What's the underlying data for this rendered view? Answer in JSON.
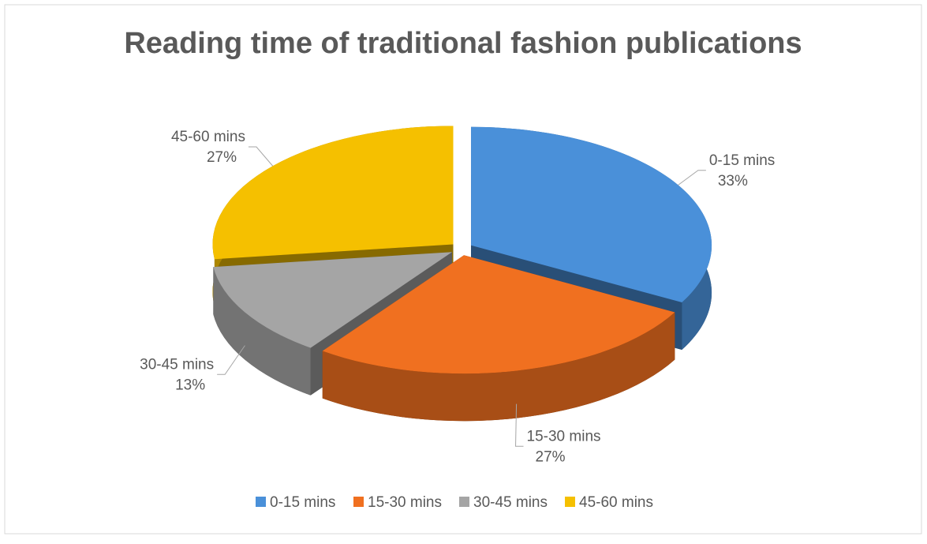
{
  "chart_data": {
    "type": "pie",
    "title": "Reading time of traditional fashion publications",
    "categories": [
      "0-15 mins",
      "15-30 mins",
      "30-45 mins",
      "45-60 mins"
    ],
    "values": [
      33,
      27,
      13,
      27
    ],
    "value_labels": [
      "33%",
      "27%",
      "13%",
      "27%"
    ],
    "colors": [
      "#4a90d9",
      "#f07020",
      "#a5a5a5",
      "#f5c000"
    ],
    "legend": "bottom"
  }
}
